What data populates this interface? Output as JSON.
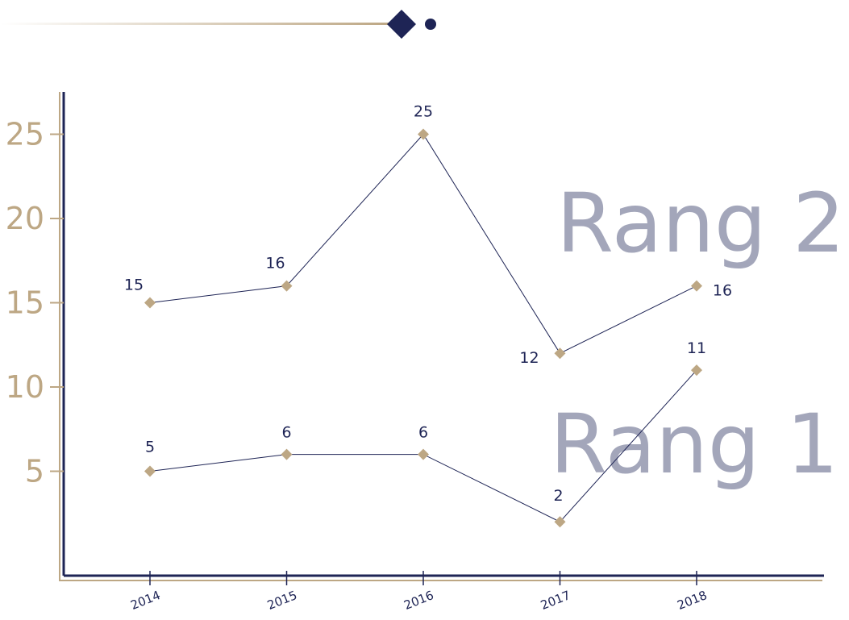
{
  "colors": {
    "gold": "#bda784",
    "navy": "#1e2455",
    "series_label": "#a3a6ba",
    "accent_gradient_start": "#ffffff"
  },
  "chart_data": {
    "type": "line",
    "categories": [
      "2014",
      "2015",
      "2016",
      "2017",
      "2018"
    ],
    "series": [
      {
        "name": "Rang 2",
        "values": [
          15,
          16,
          25,
          12,
          16
        ]
      },
      {
        "name": "Rang 1",
        "values": [
          5,
          6,
          6,
          2,
          11
        ]
      }
    ],
    "yticks": [
      5,
      10,
      15,
      20,
      25
    ],
    "ylim": [
      0,
      27
    ],
    "grid": false,
    "legend": "none",
    "marker": "diamond"
  }
}
